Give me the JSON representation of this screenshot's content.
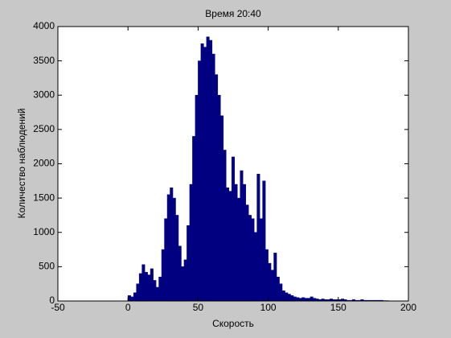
{
  "chart_data": {
    "type": "histogram",
    "title": "Время 20:40",
    "xlabel": "Скорость",
    "ylabel": "Количество наблюдений",
    "color": "#000080",
    "bins": [
      0,
      2,
      4,
      6,
      8,
      10,
      12,
      14,
      16,
      18,
      20,
      22,
      24,
      26,
      28,
      30,
      32,
      34,
      36,
      38,
      40,
      42,
      44,
      46,
      48,
      50,
      52,
      54,
      56,
      58,
      60,
      62,
      64,
      66,
      68,
      70,
      72,
      74,
      76,
      78,
      80,
      82,
      84,
      86,
      88,
      90,
      92,
      94,
      96,
      98,
      100,
      102,
      104,
      106,
      108,
      110,
      112,
      114,
      116,
      118,
      120,
      122,
      124,
      126,
      128,
      130,
      132,
      134,
      136,
      138,
      140,
      142,
      144,
      146,
      148,
      150,
      152,
      154,
      156,
      158,
      160,
      162,
      164,
      166,
      168,
      170,
      172,
      174,
      176,
      178,
      180,
      182,
      184,
      186
    ],
    "values": [
      80,
      60,
      120,
      250,
      400,
      530,
      420,
      380,
      470,
      300,
      200,
      350,
      750,
      1200,
      1550,
      1650,
      1500,
      1250,
      800,
      500,
      600,
      1100,
      1700,
      2400,
      3000,
      3500,
      3750,
      3700,
      3850,
      3800,
      3600,
      3300,
      3000,
      2700,
      2200,
      1650,
      1600,
      2100,
      1700,
      1500,
      1900,
      1700,
      1400,
      1250,
      1200,
      1000,
      1850,
      1200,
      1750,
      750,
      550,
      450,
      700,
      350,
      250,
      150,
      120,
      100,
      80,
      60,
      50,
      40,
      50,
      40,
      40,
      60,
      40,
      30,
      20,
      30,
      20,
      20,
      30,
      20,
      20,
      20,
      30,
      20,
      10,
      10,
      20,
      10,
      10,
      20,
      10,
      10,
      10,
      10,
      10,
      10,
      10,
      5,
      5
    ],
    "xlim": [
      -50,
      200
    ],
    "xticks": [
      -50,
      0,
      50,
      100,
      150,
      200
    ],
    "ylim": [
      0,
      4000
    ],
    "yticks": [
      0,
      500,
      1000,
      1500,
      2000,
      2500,
      3000,
      3500,
      4000
    ]
  }
}
